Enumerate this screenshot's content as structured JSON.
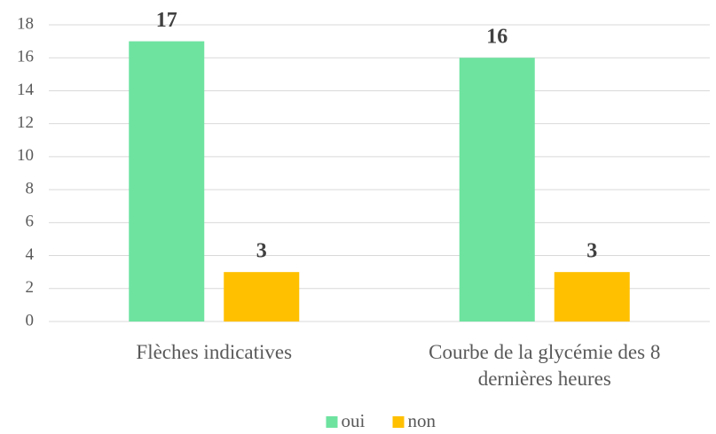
{
  "chart_data": {
    "type": "bar",
    "categories": [
      "Flèches indicatives",
      "Courbe de la glycémie des 8 dernières heures"
    ],
    "series": [
      {
        "name": "oui",
        "color": "#6ee3a0",
        "values": [
          17,
          16
        ]
      },
      {
        "name": "non",
        "color": "#ffc000",
        "values": [
          3,
          3
        ]
      }
    ],
    "ylim": [
      0,
      18
    ],
    "yticks": [
      0,
      2,
      4,
      6,
      8,
      10,
      12,
      14,
      16,
      18
    ],
    "grid": true
  }
}
